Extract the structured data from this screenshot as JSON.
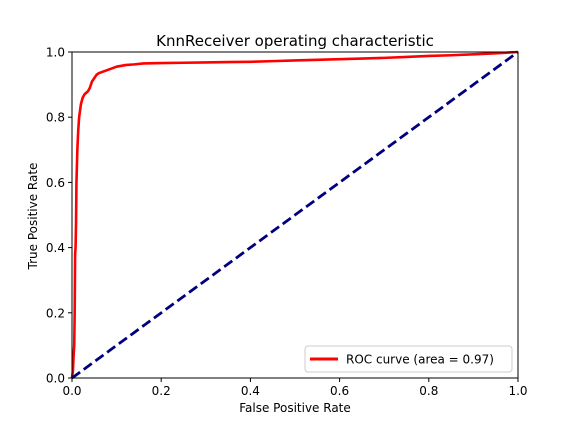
{
  "chart_data": {
    "type": "line",
    "title": "KnnReceiver operating characteristic",
    "xlabel": "False Positive Rate",
    "ylabel": "True Positive Rate",
    "xlim": [
      0.0,
      1.0
    ],
    "ylim": [
      0.0,
      1.0
    ],
    "xticks": [
      "0.0",
      "0.2",
      "0.4",
      "0.6",
      "0.8",
      "1.0"
    ],
    "yticks": [
      "0.0",
      "0.2",
      "0.4",
      "0.6",
      "0.8",
      "1.0"
    ],
    "grid": false,
    "legend_position": "lower right",
    "series": [
      {
        "name": "ROC curve (area = 0.97)",
        "color": "#ff0000",
        "style": "solid",
        "x": [
          0.0,
          0.002,
          0.003,
          0.004,
          0.005,
          0.006,
          0.007,
          0.008,
          0.009,
          0.01,
          0.012,
          0.014,
          0.016,
          0.018,
          0.02,
          0.024,
          0.028,
          0.032,
          0.036,
          0.04,
          0.045,
          0.05,
          0.055,
          0.06,
          0.07,
          0.08,
          0.09,
          0.1,
          0.12,
          0.14,
          0.16,
          0.2,
          0.25,
          0.3,
          0.35,
          0.4,
          0.45,
          0.5,
          0.55,
          0.6,
          0.65,
          0.7,
          0.75,
          0.8,
          0.85,
          0.9,
          0.95,
          1.0
        ],
        "y": [
          0.0,
          0.02,
          0.05,
          0.08,
          0.1,
          0.2,
          0.38,
          0.4,
          0.47,
          0.6,
          0.7,
          0.76,
          0.8,
          0.82,
          0.84,
          0.86,
          0.87,
          0.875,
          0.88,
          0.89,
          0.91,
          0.92,
          0.93,
          0.935,
          0.94,
          0.945,
          0.95,
          0.955,
          0.96,
          0.962,
          0.965,
          0.966,
          0.967,
          0.968,
          0.969,
          0.97,
          0.972,
          0.974,
          0.976,
          0.978,
          0.98,
          0.982,
          0.985,
          0.988,
          0.99,
          0.993,
          0.996,
          1.0
        ]
      },
      {
        "name": "",
        "color": "#000080",
        "style": "dashed",
        "x": [
          0.0,
          1.0
        ],
        "y": [
          0.0,
          1.0
        ]
      }
    ]
  }
}
